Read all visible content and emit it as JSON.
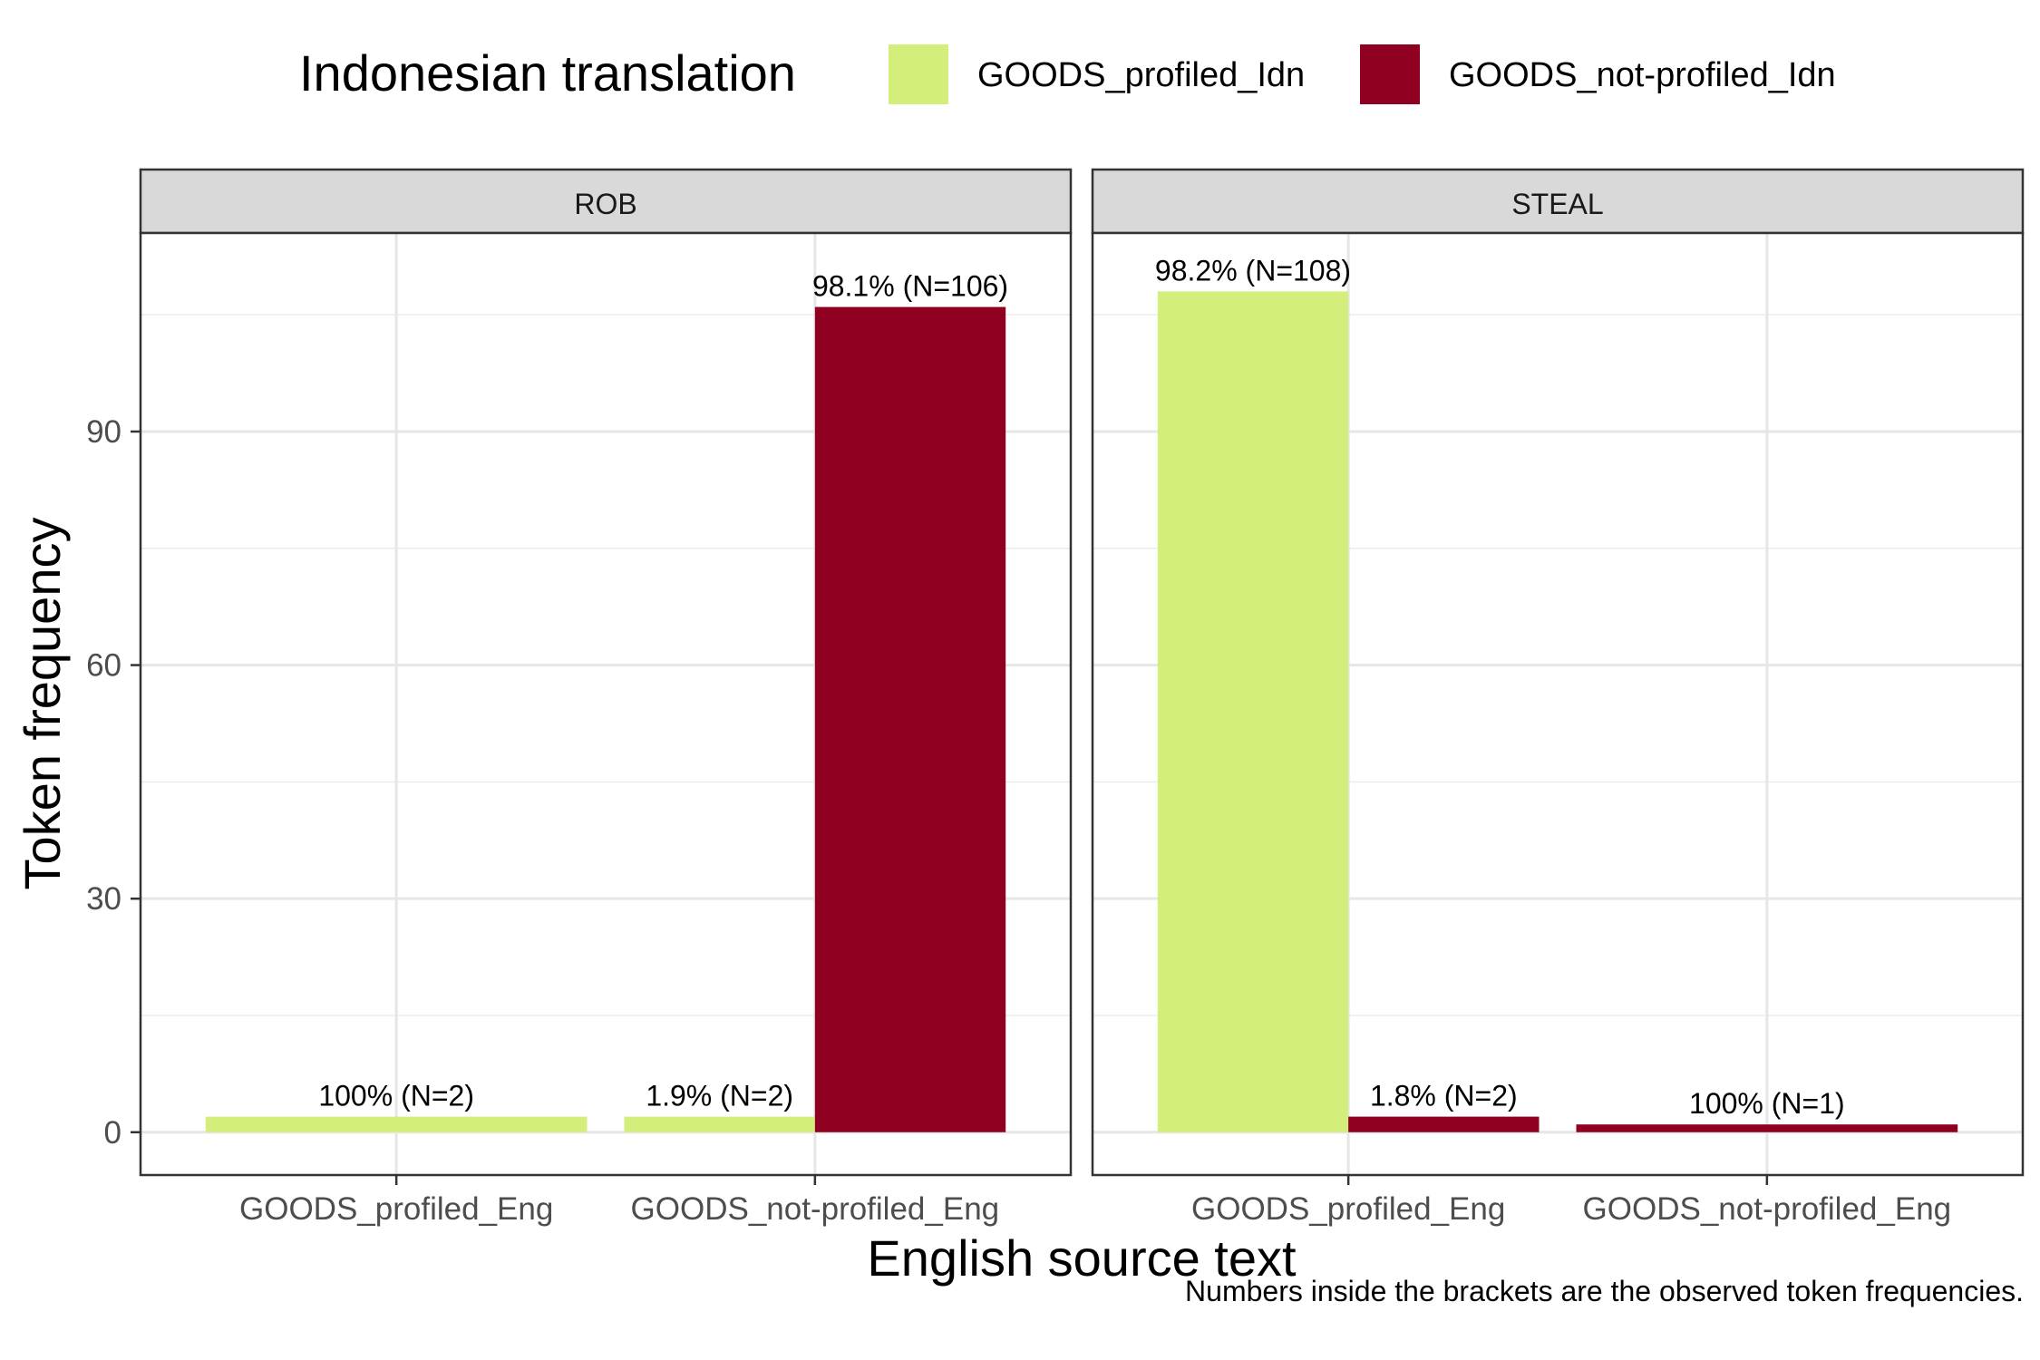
{
  "chart_data": {
    "type": "bar",
    "xlabel": "English source text",
    "ylabel": "Token frequency",
    "caption": "Numbers inside the brackets are the observed token frequencies.",
    "legend": {
      "title": "Indonesian translation",
      "placement": "top",
      "items": [
        {
          "name": "GOODS_profiled_Idn",
          "color": "#d4ee7b"
        },
        {
          "name": "GOODS_not-profiled_Idn",
          "color": "#900020"
        }
      ]
    },
    "ylim": [
      -5.5,
      115.5
    ],
    "yticks": [
      0,
      30,
      60,
      90
    ],
    "grid": true,
    "categories": [
      "GOODS_profiled_Eng",
      "GOODS_not-profiled_Eng"
    ],
    "facets": [
      {
        "title": "ROB",
        "bars": [
          {
            "category": "GOODS_profiled_Eng",
            "series": "GOODS_profiled_Idn",
            "value": 2,
            "label": "100% (N=2)",
            "full_width": true
          },
          {
            "category": "GOODS_not-profiled_Eng",
            "series": "GOODS_profiled_Idn",
            "value": 2,
            "label": "1.9% (N=2)",
            "full_width": false
          },
          {
            "category": "GOODS_not-profiled_Eng",
            "series": "GOODS_not-profiled_Idn",
            "value": 106,
            "label": "98.1% (N=106)",
            "full_width": false
          }
        ]
      },
      {
        "title": "STEAL",
        "bars": [
          {
            "category": "GOODS_profiled_Eng",
            "series": "GOODS_profiled_Idn",
            "value": 108,
            "label": "98.2% (N=108)",
            "full_width": false
          },
          {
            "category": "GOODS_profiled_Eng",
            "series": "GOODS_not-profiled_Idn",
            "value": 2,
            "label": "1.8% (N=2)",
            "full_width": false
          },
          {
            "category": "GOODS_not-profiled_Eng",
            "series": "GOODS_not-profiled_Idn",
            "value": 1,
            "label": "100% (N=1)",
            "full_width": true
          }
        ]
      }
    ]
  }
}
